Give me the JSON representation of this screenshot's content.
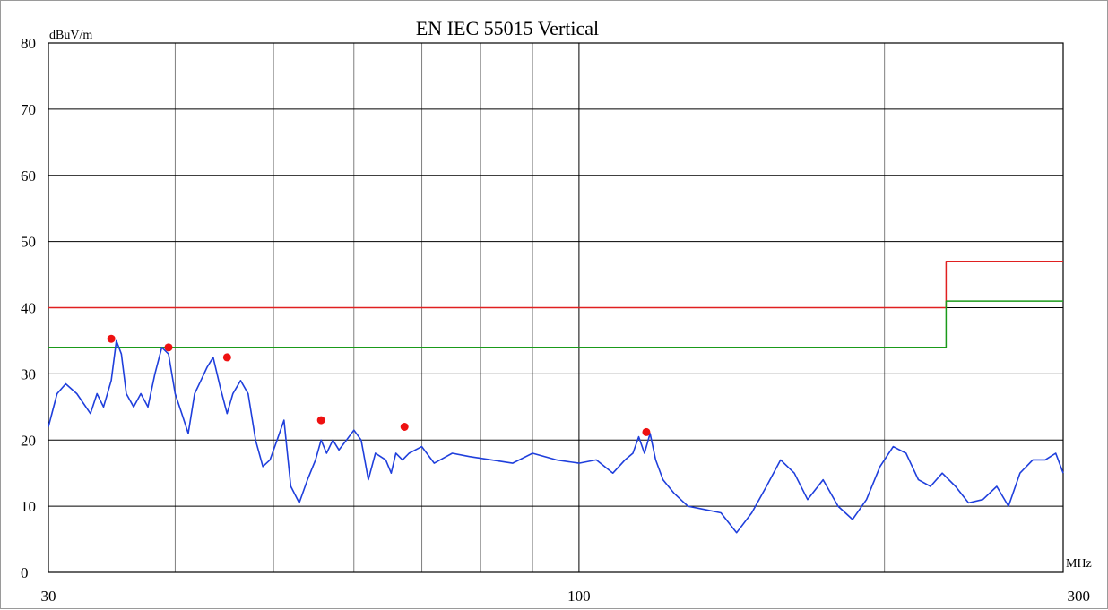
{
  "chart_data": {
    "type": "line",
    "title": "EN IEC 55015   Vertical",
    "ylabel": "dBuV/m",
    "xlabel": "MHz",
    "x_scale": "log",
    "xlim": [
      30,
      300
    ],
    "ylim": [
      0,
      80
    ],
    "x_ticks": [
      30,
      100,
      300
    ],
    "x_tick_labels": [
      "30",
      "100",
      "300"
    ],
    "x_minor_gridlines": [
      40,
      50,
      60,
      70,
      80,
      90,
      200
    ],
    "y_ticks": [
      0,
      10,
      20,
      30,
      40,
      50,
      60,
      70,
      80
    ],
    "y_tick_labels": [
      "0",
      "10",
      "20",
      "30",
      "40",
      "50",
      "60",
      "70",
      "80"
    ],
    "grid": true,
    "colors": {
      "trace": "#1f3fdc",
      "limit": "#e02020",
      "margin": "#1a9a1a",
      "marker": "#ee1111",
      "grid": "#000000",
      "minor_grid": "#7f7f7f"
    },
    "series": [
      {
        "kind": "limit",
        "color": "#e02020",
        "x": [
          30,
          230,
          230,
          300
        ],
        "y": [
          40,
          40,
          47,
          47
        ]
      },
      {
        "kind": "margin",
        "color": "#1a9a1a",
        "x": [
          30,
          230,
          230,
          300
        ],
        "y": [
          34,
          34,
          41,
          41
        ]
      },
      {
        "kind": "measurement",
        "color": "#1f3fdc",
        "x": [
          30,
          30.6,
          31.2,
          32,
          33,
          33.5,
          34,
          34.6,
          35,
          35.4,
          35.8,
          36.4,
          37,
          37.6,
          38.2,
          38.8,
          39.4,
          40,
          40.6,
          41.2,
          41.8,
          42.4,
          43,
          43.6,
          44.3,
          45,
          45.6,
          46.4,
          47.2,
          48,
          48.8,
          49.6,
          50.4,
          51.2,
          52,
          53,
          54,
          55,
          55.7,
          56.4,
          57.2,
          58,
          59,
          60,
          61,
          62,
          63,
          64.5,
          65.3,
          66,
          67,
          68,
          70,
          72,
          75,
          78,
          82,
          86,
          90,
          95,
          100,
          104,
          108,
          111,
          113,
          114.5,
          116,
          117.5,
          119,
          121,
          124,
          128,
          133,
          138,
          143,
          148,
          153,
          158,
          163,
          168,
          174,
          180,
          186,
          192,
          198,
          204,
          210,
          216,
          222,
          228,
          235,
          242,
          250,
          258,
          265,
          272,
          280,
          288,
          295,
          300
        ],
        "y": [
          22,
          27,
          28.5,
          27,
          24,
          27,
          25,
          29,
          35,
          33,
          27,
          25,
          27,
          25,
          30,
          34,
          33,
          27,
          24,
          21,
          27,
          29,
          31,
          32.5,
          28,
          24,
          27,
          29,
          27,
          20,
          16,
          17,
          20,
          23,
          13,
          10.5,
          14,
          17,
          20,
          18,
          20,
          18.5,
          20,
          21.5,
          20,
          14,
          18,
          17,
          15,
          18,
          17,
          18,
          19,
          16.5,
          18,
          17.5,
          17,
          16.5,
          18,
          17,
          16.5,
          17,
          15,
          17,
          18,
          20.5,
          18,
          21,
          17,
          14,
          12,
          10,
          9.5,
          9,
          6,
          9,
          13,
          17,
          15,
          11,
          14,
          10,
          8,
          11,
          16,
          19,
          18,
          14,
          13,
          15,
          13,
          10.5,
          11,
          13,
          10,
          15,
          17,
          17,
          18,
          15
        ]
      }
    ],
    "markers": [
      {
        "x": 34.6,
        "y": 35.3
      },
      {
        "x": 39.4,
        "y": 34
      },
      {
        "x": 45.0,
        "y": 32.5
      },
      {
        "x": 55.7,
        "y": 23
      },
      {
        "x": 67.3,
        "y": 22
      },
      {
        "x": 116.5,
        "y": 21.2
      }
    ]
  }
}
